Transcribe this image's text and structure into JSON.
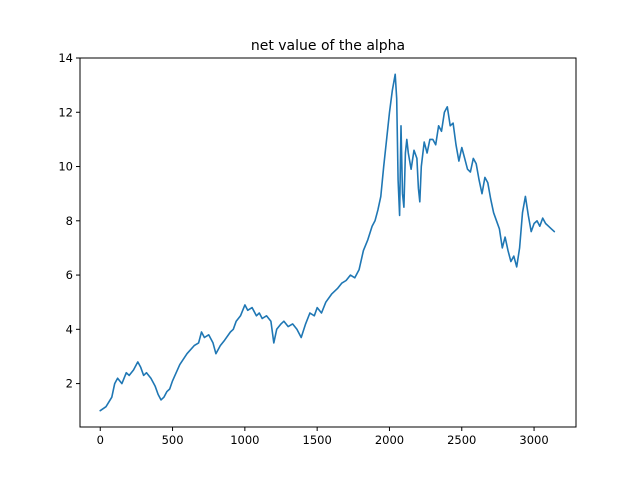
{
  "chart_data": {
    "type": "line",
    "title": "net value of the alpha",
    "xlabel": "",
    "ylabel": "",
    "xlim": [
      -140,
      3290
    ],
    "ylim": [
      0.4,
      14.0
    ],
    "xticks": [
      0,
      500,
      1000,
      1500,
      2000,
      2500,
      3000
    ],
    "yticks": [
      2,
      4,
      6,
      8,
      10,
      12,
      14
    ],
    "xtick_labels": [
      "0",
      "500",
      "1000",
      "1500",
      "2000",
      "2500",
      "3000"
    ],
    "ytick_labels": [
      "2",
      "4",
      "6",
      "8",
      "10",
      "12",
      "14"
    ],
    "grid": false,
    "legend": "none",
    "series": [
      {
        "color": "#1f77b4",
        "x": [
          0,
          40,
          80,
          100,
          120,
          150,
          180,
          200,
          230,
          260,
          280,
          300,
          320,
          350,
          380,
          400,
          420,
          440,
          460,
          480,
          500,
          550,
          600,
          650,
          680,
          700,
          720,
          750,
          780,
          800,
          830,
          860,
          900,
          920,
          940,
          970,
          1000,
          1020,
          1050,
          1080,
          1100,
          1120,
          1150,
          1180,
          1200,
          1220,
          1250,
          1270,
          1300,
          1330,
          1360,
          1390,
          1420,
          1450,
          1480,
          1500,
          1530,
          1560,
          1600,
          1640,
          1670,
          1700,
          1730,
          1760,
          1790,
          1820,
          1850,
          1880,
          1900,
          1920,
          1940,
          1960,
          1980,
          2000,
          2020,
          2040,
          2050,
          2060,
          2070,
          2080,
          2090,
          2100,
          2110,
          2120,
          2130,
          2150,
          2170,
          2190,
          2200,
          2210,
          2220,
          2240,
          2260,
          2280,
          2300,
          2320,
          2340,
          2360,
          2380,
          2400,
          2420,
          2440,
          2460,
          2480,
          2500,
          2520,
          2540,
          2560,
          2580,
          2600,
          2620,
          2640,
          2660,
          2680,
          2700,
          2720,
          2740,
          2760,
          2780,
          2800,
          2820,
          2840,
          2860,
          2880,
          2900,
          2920,
          2940,
          2960,
          2980,
          3000,
          3020,
          3040,
          3060,
          3080,
          3100,
          3120,
          3140
        ],
        "y": [
          1.0,
          1.15,
          1.5,
          2.0,
          2.2,
          2.0,
          2.4,
          2.3,
          2.5,
          2.8,
          2.6,
          2.3,
          2.4,
          2.2,
          1.9,
          1.6,
          1.4,
          1.5,
          1.7,
          1.8,
          2.1,
          2.7,
          3.1,
          3.4,
          3.5,
          3.9,
          3.7,
          3.8,
          3.5,
          3.1,
          3.4,
          3.6,
          3.9,
          4.0,
          4.3,
          4.5,
          4.9,
          4.7,
          4.8,
          4.5,
          4.6,
          4.4,
          4.5,
          4.3,
          3.5,
          4.0,
          4.2,
          4.3,
          4.1,
          4.2,
          4.0,
          3.7,
          4.2,
          4.6,
          4.5,
          4.8,
          4.6,
          5.0,
          5.3,
          5.5,
          5.7,
          5.8,
          6.0,
          5.9,
          6.2,
          6.9,
          7.3,
          7.8,
          8.0,
          8.4,
          8.9,
          10.0,
          11.0,
          12.0,
          12.8,
          13.4,
          12.5,
          9.5,
          8.2,
          11.5,
          9.0,
          8.5,
          10.5,
          11.0,
          10.5,
          9.9,
          10.6,
          10.3,
          9.2,
          8.7,
          10.0,
          10.9,
          10.5,
          11.0,
          11.0,
          10.8,
          11.5,
          11.3,
          12.0,
          12.2,
          11.5,
          11.6,
          10.8,
          10.2,
          10.7,
          10.3,
          9.9,
          9.8,
          10.3,
          10.1,
          9.5,
          9.0,
          9.6,
          9.4,
          8.8,
          8.3,
          8.0,
          7.7,
          7.0,
          7.4,
          6.9,
          6.5,
          6.7,
          6.3,
          7.0,
          8.3,
          8.9,
          8.2,
          7.6,
          7.9,
          8.0,
          7.8,
          8.1,
          7.9,
          7.8,
          7.7,
          7.6
        ]
      }
    ]
  }
}
